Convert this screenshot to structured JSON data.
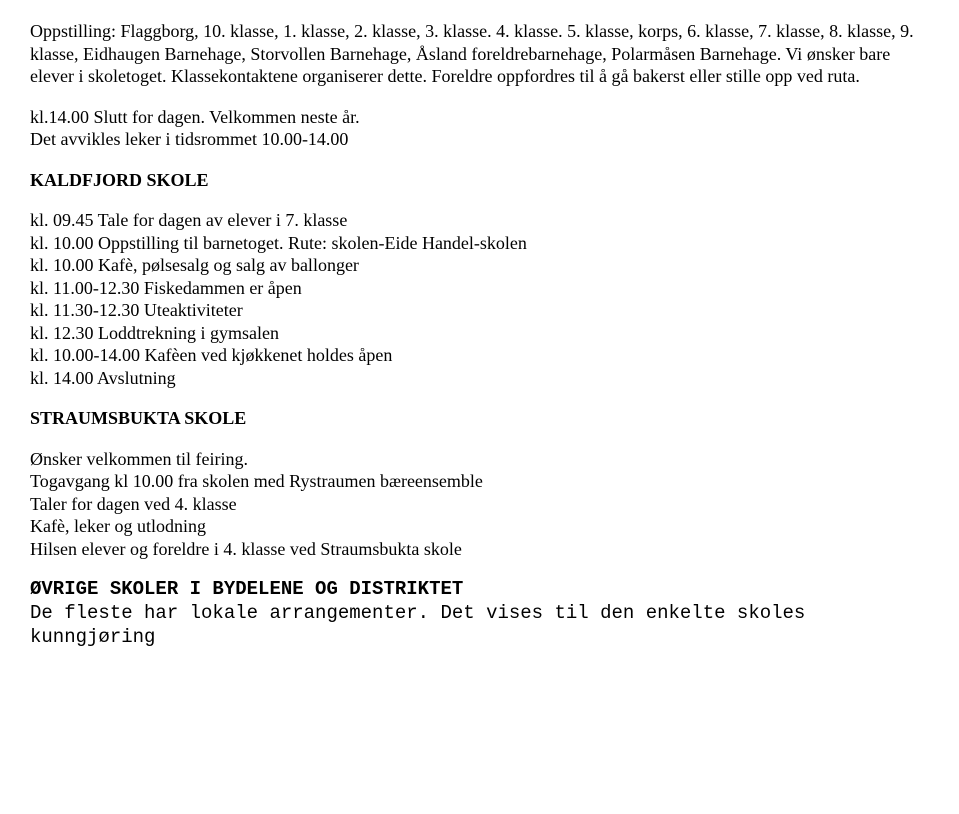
{
  "p1": "Oppstilling: Flaggborg, 10. klasse, 1. klasse, 2. klasse, 3. klasse. 4. klasse. 5. klasse, korps, 6. klasse, 7. klasse, 8. klasse, 9. klasse, Eidhaugen Barnehage, Storvollen Barnehage, Åsland foreldrebarnehage, Polarmåsen Barnehage. Vi ønsker bare elever i skoletoget. Klassekontaktene organiserer dette. Foreldre oppfordres til å gå bakerst eller stille opp ved ruta.",
  "p2": "kl.14.00 Slutt for dagen. Velkommen neste år.",
  "p3": "Det avvikles leker i tidsrommet 10.00-14.00",
  "h1": "KALDFJORD SKOLE",
  "k1": "kl. 09.45 Tale for dagen av elever i 7. klasse",
  "k2": "kl. 10.00 Oppstilling til barnetoget. Rute: skolen-Eide Handel-skolen",
  "k3": "kl. 10.00 Kafè, pølsesalg og salg av ballonger",
  "k4": "kl. 11.00-12.30 Fiskedammen er åpen",
  "k5": "kl. 11.30-12.30 Uteaktiviteter",
  "k6": "kl. 12.30 Loddtrekning i gymsalen",
  "k7": "kl. 10.00-14.00 Kafèen ved kjøkkenet holdes åpen",
  "k8": "kl. 14.00 Avslutning",
  "h2": "STRAUMSBUKTA SKOLE",
  "s1": "Ønsker velkommen til feiring.",
  "s2": "Togavgang kl 10.00 fra skolen med Rystraumen bæreensemble",
  "s3": "Taler for dagen ved 4. klasse",
  "s4": "Kafè, leker og utlodning",
  "s5": "Hilsen elever og foreldre i 4. klasse ved Straumsbukta skole",
  "h3": "ØVRIGE SKOLER I BYDELENE OG DISTRIKTET",
  "m1": "De fleste har lokale arrangementer. Det vises til den enkelte skoles kunngjøring"
}
